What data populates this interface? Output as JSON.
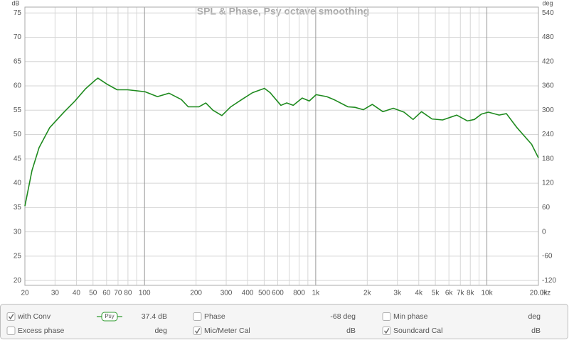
{
  "chart_data": {
    "type": "line",
    "title": "SPL & Phase, Psy octave smoothing",
    "y_unit": "dB",
    "y2_unit": "deg",
    "x_unit": "Hz",
    "log_x": true,
    "grid": true,
    "xlim": [
      20,
      20000
    ],
    "xticks": [
      20,
      30,
      40,
      50,
      60,
      70,
      80,
      100,
      200,
      300,
      400,
      500,
      600,
      800,
      {
        "value": 1000,
        "label": "1k"
      },
      {
        "value": 2000,
        "label": "2k"
      },
      {
        "value": 3000,
        "label": "3k"
      },
      {
        "value": 4000,
        "label": "4k"
      },
      {
        "value": 5000,
        "label": "5k"
      },
      {
        "value": 6000,
        "label": "6k"
      },
      {
        "value": 7000,
        "label": "7k"
      },
      {
        "value": 8000,
        "label": "8k"
      },
      {
        "value": 10000,
        "label": "10k"
      },
      {
        "value": 20000,
        "label": "20.0k"
      }
    ],
    "x_minor_grid": [
      90,
      700,
      900,
      9000
    ],
    "ylim": [
      19,
      76.2
    ],
    "yticks": [
      20,
      25,
      30,
      35,
      40,
      45,
      50,
      55,
      60,
      65,
      70,
      75
    ],
    "y2lim": [
      -132,
      554.4
    ],
    "y2ticks": [
      -120,
      -60,
      0,
      60,
      120,
      180,
      240,
      300,
      360,
      420,
      480,
      540
    ],
    "x": [
      20,
      22,
      24.2,
      27.9,
      33.8,
      39,
      45.2,
      52,
      53.4,
      60.1,
      69.2,
      79.8,
      100.6,
      119,
      139,
      164,
      180,
      208,
      228,
      251,
      283,
      319,
      370,
      427,
      502,
      542,
      626,
      677,
      739,
      834,
      917,
      1006,
      1160,
      1275,
      1543,
      1695,
      1898,
      2140,
      2467,
      2840,
      3280,
      3705,
      4150,
      4780,
      5510,
      6670,
      7690,
      8450,
      9290,
      10200,
      11800,
      13000,
      15000,
      18250,
      20000
    ],
    "series": [
      {
        "color": "#1e8a1e",
        "values": [
          35.3,
          42.6,
          47.3,
          51.4,
          54.6,
          56.8,
          59.4,
          61.3,
          61.6,
          60.4,
          59.2,
          59.2,
          58.8,
          57.8,
          58.5,
          57.2,
          55.7,
          55.7,
          56.5,
          55.0,
          53.9,
          55.7,
          57.2,
          58.6,
          59.5,
          58.6,
          56.0,
          56.5,
          56.0,
          57.5,
          56.9,
          58.2,
          57.8,
          57.2,
          55.7,
          55.6,
          55.1,
          56.2,
          54.7,
          55.4,
          54.6,
          53.1,
          54.7,
          53.2,
          53.0,
          54.0,
          52.8,
          53.1,
          54.2,
          54.6,
          54.0,
          54.3,
          51.4,
          48.0,
          45.2
        ]
      }
    ]
  },
  "controls": [
    {
      "label": "with Conv",
      "checked": true,
      "active": true,
      "badge": "Psy",
      "readout": "37.4 dB"
    },
    {
      "label": "Phase",
      "checked": false,
      "active": true,
      "readout": "-68 deg"
    },
    {
      "label": "Min phase",
      "checked": false,
      "active": false,
      "readout": "deg"
    },
    {
      "label": "Excess phase",
      "checked": false,
      "active": false,
      "readout": "deg"
    },
    {
      "label": "Mic/Meter Cal",
      "checked": true,
      "active": false,
      "readout": "dB"
    },
    {
      "label": "Soundcard Cal",
      "checked": true,
      "active": false,
      "readout": "dB"
    }
  ]
}
